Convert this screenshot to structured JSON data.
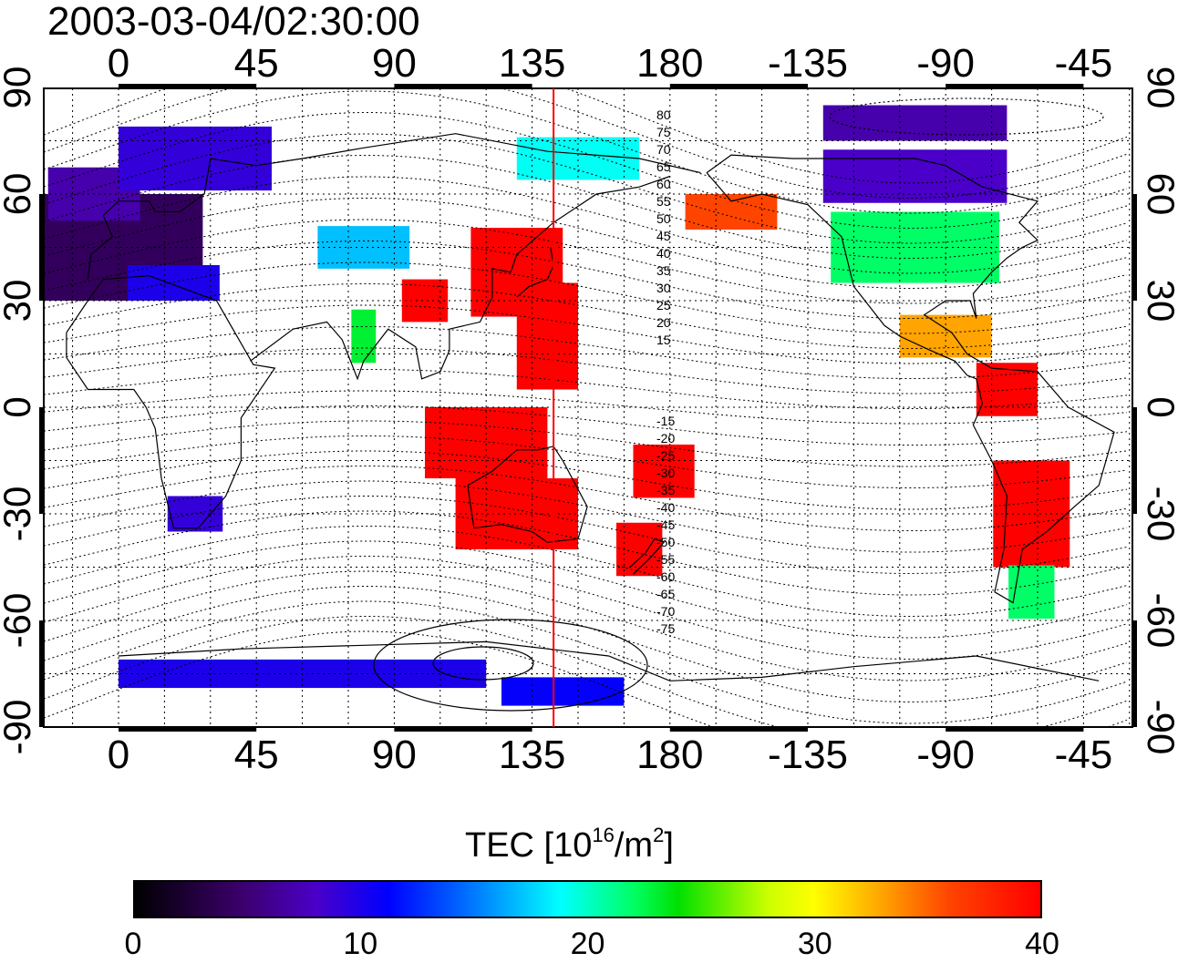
{
  "timestamp": "2003-03-04/02:30:00",
  "map": {
    "x_ticks": [
      "0",
      "45",
      "90",
      "135",
      "180",
      "-135",
      "-90",
      "-45"
    ],
    "y_ticks": [
      "90",
      "60",
      "30",
      "0",
      "-30",
      "-60",
      "-90"
    ],
    "magnetic_lat_labels_north": [
      "80",
      "75",
      "70",
      "65",
      "60",
      "55",
      "50",
      "45",
      "40",
      "35",
      "30",
      "25",
      "20",
      "15"
    ],
    "magnetic_lat_labels_south": [
      "-15",
      "-20",
      "-25",
      "-30",
      "-35",
      "-40",
      "-45",
      "-50",
      "-55",
      "-60",
      "-65",
      "-70",
      "-75"
    ],
    "terminator_longitude": 142,
    "terminator_color": "#ff0000"
  },
  "colorbar": {
    "title": "TEC  [10",
    "title_exp": "16",
    "title_mid": "/m",
    "title_exp2": "2",
    "title_end": "]",
    "min": 0,
    "max": 40,
    "tick_labels": [
      "0",
      "10",
      "20",
      "30",
      "40"
    ]
  },
  "tec_patches": [
    {
      "lon": 0,
      "lat": 45,
      "w": 55,
      "h": 30,
      "tec": 4
    },
    {
      "lon": -8,
      "lat": 60,
      "w": 30,
      "h": 15,
      "tec": 7
    },
    {
      "lon": 25,
      "lat": 70,
      "w": 50,
      "h": 18,
      "tec": 9
    },
    {
      "lon": 18,
      "lat": 35,
      "w": 30,
      "h": 10,
      "tec": 10
    },
    {
      "lon": 80,
      "lat": 45,
      "w": 30,
      "h": 12,
      "tec": 17
    },
    {
      "lon": 80,
      "lat": 20,
      "w": 8,
      "h": 15,
      "tec": 23
    },
    {
      "lon": 100,
      "lat": 30,
      "w": 15,
      "h": 12,
      "tec": 40
    },
    {
      "lon": 130,
      "lat": 38,
      "w": 30,
      "h": 25,
      "tec": 40
    },
    {
      "lon": 140,
      "lat": 20,
      "w": 20,
      "h": 30,
      "tec": 40
    },
    {
      "lon": 120,
      "lat": -10,
      "w": 40,
      "h": 20,
      "tec": 40
    },
    {
      "lon": 130,
      "lat": -30,
      "w": 40,
      "h": 20,
      "tec": 40
    },
    {
      "lon": 170,
      "lat": -40,
      "w": 15,
      "h": 15,
      "tec": 40
    },
    {
      "lon": 178,
      "lat": -18,
      "w": 20,
      "h": 15,
      "tec": 40
    },
    {
      "lon": -160,
      "lat": 55,
      "w": 30,
      "h": 10,
      "tec": 36
    },
    {
      "lon": -100,
      "lat": 45,
      "w": 55,
      "h": 20,
      "tec": 22
    },
    {
      "lon": -100,
      "lat": 65,
      "w": 60,
      "h": 15,
      "tec": 8
    },
    {
      "lon": -100,
      "lat": 80,
      "w": 60,
      "h": 10,
      "tec": 7
    },
    {
      "lon": -90,
      "lat": 20,
      "w": 30,
      "h": 12,
      "tec": 33
    },
    {
      "lon": -70,
      "lat": 5,
      "w": 20,
      "h": 15,
      "tec": 40
    },
    {
      "lon": -62,
      "lat": -30,
      "w": 25,
      "h": 30,
      "tec": 40
    },
    {
      "lon": -62,
      "lat": -52,
      "w": 15,
      "h": 15,
      "tec": 22
    },
    {
      "lon": 25,
      "lat": -30,
      "w": 18,
      "h": 10,
      "tec": 9
    },
    {
      "lon": 60,
      "lat": -75,
      "w": 120,
      "h": 8,
      "tec": 10
    },
    {
      "lon": 145,
      "lat": -80,
      "w": 40,
      "h": 8,
      "tec": 11
    },
    {
      "lon": 150,
      "lat": 70,
      "w": 40,
      "h": 12,
      "tec": 19
    }
  ]
}
